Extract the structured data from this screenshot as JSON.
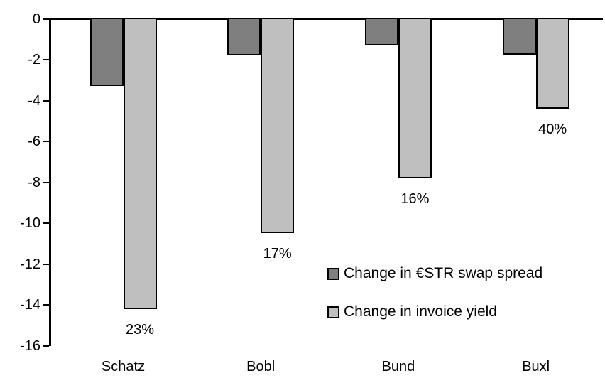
{
  "chart_data": {
    "type": "bar",
    "title": "",
    "xlabel": "",
    "ylabel": "",
    "categories": [
      "Schatz",
      "Bobl",
      "Bund",
      "Buxl"
    ],
    "series": [
      {
        "name": "Change in €STR swap spread",
        "color": "#7f7f7f",
        "values": [
          -3.3,
          -1.8,
          -1.3,
          -1.75
        ]
      },
      {
        "name": "Change in invoice yield",
        "color": "#bfbfbf",
        "values": [
          -14.2,
          -10.5,
          -7.8,
          -4.4
        ]
      }
    ],
    "data_labels": {
      "series": "Change in invoice yield",
      "values": [
        "23%",
        "17%",
        "16%",
        "40%"
      ]
    },
    "y_ticks": [
      0,
      -2,
      -4,
      -6,
      -8,
      -10,
      -12,
      -14,
      -16
    ],
    "ylim": [
      -16,
      0
    ],
    "grid": false,
    "bar_border_color": "#000000",
    "legend_position": "inside-right-middle"
  },
  "legend": {
    "items": [
      {
        "label": "Change in €STR swap spread",
        "color": "#7f7f7f"
      },
      {
        "label": "Change in invoice yield",
        "color": "#bfbfbf"
      }
    ]
  }
}
